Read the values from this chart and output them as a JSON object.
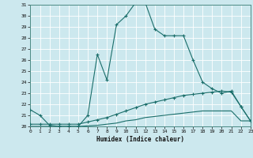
{
  "xlabel": "Humidex (Indice chaleur)",
  "background_color": "#cce8ee",
  "grid_color": "#aacccc",
  "line_color": "#1a6e6a",
  "x_min": 0,
  "x_max": 23,
  "y_min": 20,
  "y_max": 31,
  "series1_x": [
    0,
    1,
    2,
    3,
    4,
    5,
    6,
    7,
    8,
    9,
    10,
    11,
    12,
    13,
    14,
    15,
    16,
    17,
    18,
    19,
    20,
    21,
    22,
    23
  ],
  "series1_y": [
    21.5,
    21.0,
    20.1,
    20.0,
    20.0,
    20.0,
    21.0,
    26.5,
    24.2,
    29.2,
    30.0,
    31.2,
    31.2,
    28.8,
    28.2,
    28.2,
    28.2,
    26.0,
    24.0,
    23.4,
    23.0,
    23.2,
    21.8,
    20.5
  ],
  "series2_x": [
    0,
    1,
    2,
    3,
    4,
    5,
    6,
    7,
    8,
    9,
    10,
    11,
    12,
    13,
    14,
    15,
    16,
    17,
    18,
    19,
    20,
    21,
    22,
    23
  ],
  "series2_y": [
    20.2,
    20.2,
    20.2,
    20.2,
    20.2,
    20.2,
    20.4,
    20.6,
    20.8,
    21.1,
    21.4,
    21.7,
    22.0,
    22.2,
    22.4,
    22.6,
    22.8,
    22.9,
    23.0,
    23.1,
    23.2,
    23.1,
    21.8,
    20.5
  ],
  "series3_x": [
    0,
    1,
    2,
    3,
    4,
    5,
    6,
    7,
    8,
    9,
    10,
    11,
    12,
    13,
    14,
    15,
    16,
    17,
    18,
    19,
    20,
    21,
    22,
    23
  ],
  "series3_y": [
    20.0,
    20.0,
    20.0,
    20.0,
    20.0,
    20.0,
    20.05,
    20.1,
    20.2,
    20.3,
    20.5,
    20.6,
    20.8,
    20.9,
    21.0,
    21.1,
    21.2,
    21.3,
    21.4,
    21.4,
    21.4,
    21.4,
    20.5,
    20.5
  ]
}
